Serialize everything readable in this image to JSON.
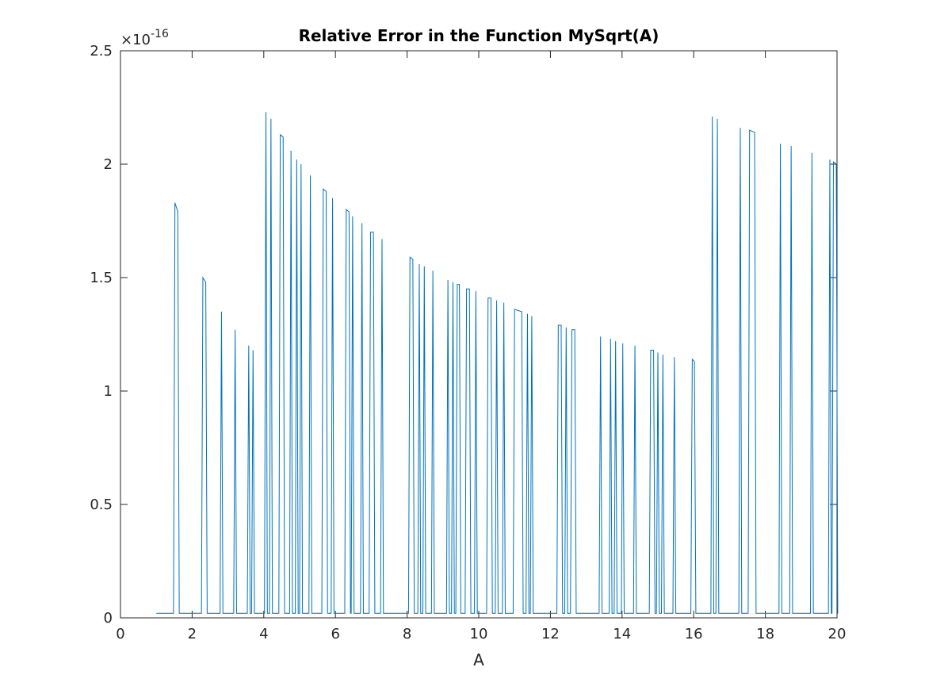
{
  "chart_data": {
    "type": "line",
    "title": "Relative Error in the Function MySqrt(A)",
    "xlabel": "A",
    "ylabel": "",
    "y_exponent_label": "×10",
    "y_exponent_power": "-16",
    "xlim": [
      0,
      20
    ],
    "ylim": [
      0,
      2.5
    ],
    "x_ticks": [
      0,
      2,
      4,
      6,
      8,
      10,
      12,
      14,
      16,
      18,
      20
    ],
    "y_ticks": [
      0,
      0.5,
      1,
      1.5,
      2,
      2.5
    ],
    "y_tick_labels": [
      "0",
      "0.5",
      "1",
      "1.5",
      "2",
      "2.5"
    ],
    "grid": false,
    "legend": "none",
    "line_color": "#0072BD",
    "baseline": 0.02,
    "x_start": 1.0,
    "x_end": 20.0,
    "spikes": [
      {
        "x": 1.52,
        "y": 1.83,
        "w": 0.08,
        "y2": 1.79
      },
      {
        "x": 2.3,
        "y": 1.5,
        "w": 0.08,
        "y2": 1.48
      },
      {
        "x": 2.82,
        "y": 1.35
      },
      {
        "x": 3.2,
        "y": 1.27
      },
      {
        "x": 3.58,
        "y": 1.2
      },
      {
        "x": 3.7,
        "y": 1.18
      },
      {
        "x": 4.06,
        "y": 2.23
      },
      {
        "x": 4.2,
        "y": 2.2
      },
      {
        "x": 4.46,
        "y": 2.13,
        "w": 0.08,
        "y2": 2.12
      },
      {
        "x": 4.76,
        "y": 2.06
      },
      {
        "x": 4.92,
        "y": 2.02
      },
      {
        "x": 5.04,
        "y": 2.0
      },
      {
        "x": 5.3,
        "y": 1.95
      },
      {
        "x": 5.66,
        "y": 1.89,
        "w": 0.08,
        "y2": 1.88
      },
      {
        "x": 5.92,
        "y": 1.85
      },
      {
        "x": 6.3,
        "y": 1.8,
        "w": 0.08,
        "y2": 1.79
      },
      {
        "x": 6.48,
        "y": 1.77
      },
      {
        "x": 6.74,
        "y": 1.74
      },
      {
        "x": 6.98,
        "y": 1.7,
        "w": 0.08,
        "y2": 1.7
      },
      {
        "x": 7.3,
        "y": 1.67
      },
      {
        "x": 8.08,
        "y": 1.59,
        "w": 0.08,
        "y2": 1.58
      },
      {
        "x": 8.34,
        "y": 1.56
      },
      {
        "x": 8.48,
        "y": 1.55
      },
      {
        "x": 8.72,
        "y": 1.53
      },
      {
        "x": 9.14,
        "y": 1.49
      },
      {
        "x": 9.28,
        "y": 1.48
      },
      {
        "x": 9.4,
        "y": 1.47,
        "w": 0.06,
        "y2": 1.47
      },
      {
        "x": 9.66,
        "y": 1.45,
        "w": 0.08,
        "y2": 1.45
      },
      {
        "x": 9.92,
        "y": 1.44
      },
      {
        "x": 10.26,
        "y": 1.41,
        "w": 0.08,
        "y2": 1.41
      },
      {
        "x": 10.5,
        "y": 1.4
      },
      {
        "x": 10.7,
        "y": 1.39
      },
      {
        "x": 11.0,
        "y": 1.36,
        "w": 0.2,
        "y2": 1.35
      },
      {
        "x": 11.36,
        "y": 1.34
      },
      {
        "x": 11.48,
        "y": 1.33
      },
      {
        "x": 12.22,
        "y": 1.29,
        "w": 0.08,
        "y2": 1.29
      },
      {
        "x": 12.44,
        "y": 1.28
      },
      {
        "x": 12.6,
        "y": 1.27,
        "w": 0.08,
        "y2": 1.27
      },
      {
        "x": 13.4,
        "y": 1.24
      },
      {
        "x": 13.68,
        "y": 1.23
      },
      {
        "x": 13.82,
        "y": 1.22
      },
      {
        "x": 14.02,
        "y": 1.21
      },
      {
        "x": 14.36,
        "y": 1.2
      },
      {
        "x": 14.8,
        "y": 1.18,
        "w": 0.08,
        "y2": 1.18
      },
      {
        "x": 15.0,
        "y": 1.17
      },
      {
        "x": 15.14,
        "y": 1.16
      },
      {
        "x": 15.46,
        "y": 1.15
      },
      {
        "x": 15.96,
        "y": 1.14,
        "w": 0.06,
        "y2": 1.13
      },
      {
        "x": 16.52,
        "y": 2.21
      },
      {
        "x": 16.66,
        "y": 2.2
      },
      {
        "x": 17.3,
        "y": 2.16
      },
      {
        "x": 17.56,
        "y": 2.15,
        "w": 0.14,
        "y2": 2.14
      },
      {
        "x": 18.42,
        "y": 2.09
      },
      {
        "x": 18.72,
        "y": 2.08
      },
      {
        "x": 19.3,
        "y": 2.05
      },
      {
        "x": 19.8,
        "y": 2.02
      },
      {
        "x": 19.9,
        "y": 2.01,
        "w": 0.08,
        "y2": 2.0
      }
    ]
  }
}
